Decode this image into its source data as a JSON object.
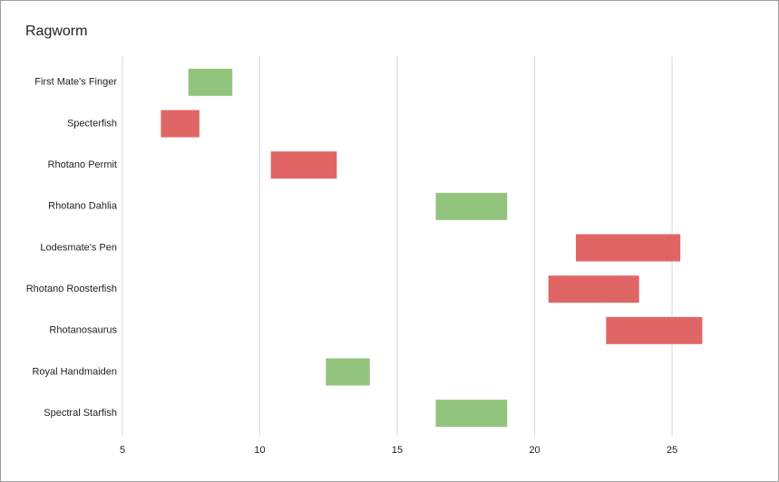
{
  "chart_data": {
    "type": "floating-bar",
    "title": "Ragworm",
    "categories": [
      "First Mate's Finger",
      "Specterfish",
      "Rhotano Permit",
      "Rhotano Dahlia",
      "Lodesmate's Pen",
      "Rhotano Roosterfish",
      "Rhotanosaurus",
      "Royal Handmaiden",
      "Spectral Starfish"
    ],
    "starts": [
      7.4,
      6.4,
      10.4,
      16.4,
      21.5,
      20.5,
      22.6,
      12.4,
      16.4
    ],
    "ends": [
      9.0,
      7.8,
      12.8,
      19.0,
      25.3,
      23.8,
      26.1,
      14.0,
      19.0
    ],
    "colors": [
      "#93c47d",
      "#e06666",
      "#e06666",
      "#93c47d",
      "#e06666",
      "#e06666",
      "#e06666",
      "#93c47d",
      "#93c47d"
    ],
    "xlim": [
      5,
      28
    ],
    "xticks": [
      5,
      10,
      15,
      20,
      25
    ],
    "grid": true
  }
}
